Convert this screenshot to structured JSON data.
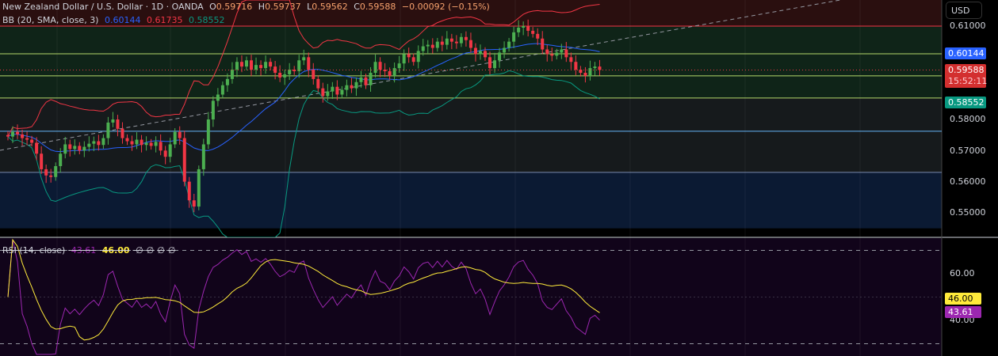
{
  "header": {
    "symbol": "New Zealand Dollar / U.S. Dollar · 1D · OANDA",
    "o_label": "O",
    "o": "0.59716",
    "h_label": "H",
    "h": "0.59737",
    "l_label": "L",
    "l": "0.59562",
    "c_label": "C",
    "c": "0.59588",
    "change": "−0.00092 (−0.15%)"
  },
  "bb_legend": {
    "label": "BB (20, SMA, close, 3)",
    "basis": "0.60144",
    "upper": "0.61735",
    "lower": "0.58552"
  },
  "rsi_legend": {
    "label": "RSI (14, close)",
    "rsi": "43.61",
    "ma": "46.00",
    "extras": [
      "∅",
      "∅",
      "∅",
      "∅"
    ]
  },
  "axis": {
    "currency": "USD",
    "price_ticks": [
      "0.61000",
      "0.58000",
      "0.57000",
      "0.56000",
      "0.55000"
    ],
    "rsi_ticks": [
      "60.00",
      "40.00"
    ],
    "tags": {
      "basis": "0.60144",
      "last": "0.59588",
      "countdown": "15:52:11",
      "lower": "0.58552",
      "rsi_ma": "46.00",
      "rsi": "43.61"
    }
  },
  "colors": {
    "up": "#4caf50",
    "down": "#f23645",
    "basis": "#2962ff",
    "upper": "#f23645",
    "lower": "#089981",
    "rsi": "#9c27b0",
    "rsi_ma": "#ffeb3b"
  },
  "chart_data": {
    "type": "candlestick",
    "title": "New Zealand Dollar / U.S. Dollar · 1D · OANDA",
    "ylim": [
      0.545,
      0.6185
    ],
    "closes": [
      0.5745,
      0.576,
      0.5752,
      0.574,
      0.5735,
      0.5725,
      0.569,
      0.564,
      0.562,
      0.5615,
      0.565,
      0.569,
      0.572,
      0.5705,
      0.5715,
      0.57,
      0.5712,
      0.5722,
      0.573,
      0.5718,
      0.574,
      0.579,
      0.58,
      0.577,
      0.574,
      0.573,
      0.572,
      0.5735,
      0.5718,
      0.5725,
      0.5715,
      0.5728,
      0.57,
      0.568,
      0.572,
      0.576,
      0.574,
      0.56,
      0.554,
      0.552,
      0.564,
      0.572,
      0.58,
      0.586,
      0.588,
      0.591,
      0.593,
      0.596,
      0.5985,
      0.597,
      0.599,
      0.596,
      0.5975,
      0.5965,
      0.5985,
      0.597,
      0.595,
      0.5935,
      0.5945,
      0.596,
      0.5955,
      0.599,
      0.6,
      0.596,
      0.593,
      0.59,
      0.5875,
      0.589,
      0.5905,
      0.588,
      0.5895,
      0.591,
      0.59,
      0.592,
      0.5935,
      0.591,
      0.595,
      0.5985,
      0.596,
      0.5955,
      0.594,
      0.5965,
      0.598,
      0.601,
      0.6,
      0.5985,
      0.602,
      0.6035,
      0.604,
      0.603,
      0.605,
      0.604,
      0.606,
      0.605,
      0.6045,
      0.6065,
      0.6055,
      0.603,
      0.601,
      0.602,
      0.6,
      0.5965,
      0.599,
      0.6015,
      0.603,
      0.605,
      0.608,
      0.6095,
      0.61,
      0.6085,
      0.6075,
      0.606,
      0.6025,
      0.601,
      0.6005,
      0.6015,
      0.6025,
      0.6,
      0.5985,
      0.596,
      0.595,
      0.594,
      0.5965,
      0.597,
      0.5959
    ],
    "levels": [
      {
        "price": 0.61,
        "color": "#f23645"
      },
      {
        "price": 0.6011,
        "color": "#b5d86a"
      },
      {
        "price": 0.594,
        "color": "#b5d86a"
      },
      {
        "price": 0.5869,
        "color": "#b5d86a"
      },
      {
        "price": 0.5762,
        "color": "#64b5f6"
      },
      {
        "price": 0.563,
        "color": "#7a8bb0"
      }
    ],
    "zones": [
      {
        "from": 0.61,
        "to": 0.6185,
        "color": "#2a0f0f"
      },
      {
        "from": 0.5869,
        "to": 0.61,
        "color": "#0f2418"
      },
      {
        "from": 0.563,
        "to": 0.5869,
        "color": "#161a1c"
      },
      {
        "from": 0.545,
        "to": 0.563,
        "color": "#0b1a33"
      }
    ],
    "rsi_ylim": [
      25,
      78
    ],
    "rsi_bands": [
      70,
      30
    ],
    "bb_period": 20,
    "bb_mult": 3,
    "rsi_period": 14,
    "rsi_ma_period": 14
  }
}
